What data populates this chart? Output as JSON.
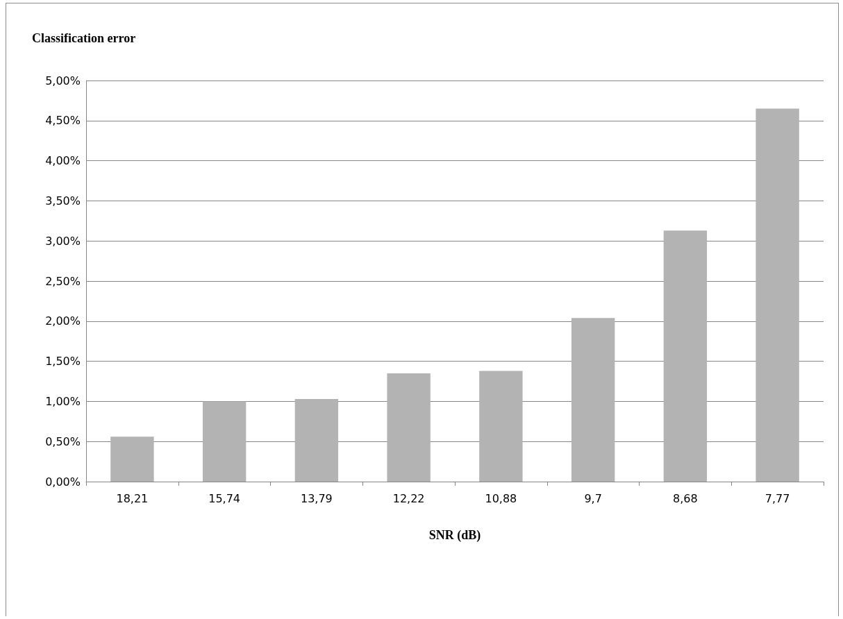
{
  "chart_data": {
    "type": "bar",
    "title": "Classification error",
    "xlabel": "SNR (dB)",
    "categories": [
      "18,21",
      "15,74",
      "13,79",
      "12,22",
      "10,88",
      "9,7",
      "8,68",
      "7,77"
    ],
    "values": [
      0.56,
      1.0,
      1.03,
      1.35,
      1.38,
      2.04,
      3.13,
      4.65
    ],
    "color": "#b3b3b3",
    "ylim": [
      0,
      5
    ],
    "yticks": [
      {
        "value": 0,
        "label": "0,00%"
      },
      {
        "value": 0.5,
        "label": "0,50%"
      },
      {
        "value": 1,
        "label": "1,00%"
      },
      {
        "value": 1.5,
        "label": "1,50%"
      },
      {
        "value": 2,
        "label": "2,00%"
      },
      {
        "value": 2.5,
        "label": "2,50%"
      },
      {
        "value": 3,
        "label": "3,00%"
      },
      {
        "value": 3.5,
        "label": "3,50%"
      },
      {
        "value": 4,
        "label": "4,00%"
      },
      {
        "value": 4.5,
        "label": "4,50%"
      },
      {
        "value": 5,
        "label": "5,00%"
      }
    ],
    "grid": true
  }
}
